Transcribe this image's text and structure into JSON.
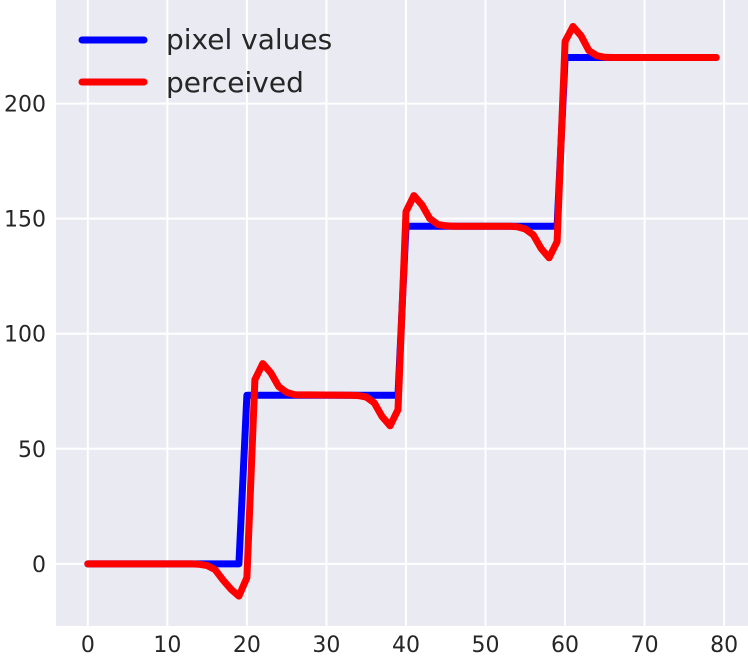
{
  "chart_data": {
    "type": "line",
    "title": "",
    "xlabel": "",
    "ylabel": "",
    "xlim": [
      -4,
      83
    ],
    "ylim": [
      -27,
      245
    ],
    "xticks": [
      0,
      10,
      20,
      30,
      40,
      50,
      60,
      70,
      80
    ],
    "yticks": [
      0,
      50,
      100,
      150,
      200
    ],
    "grid": true,
    "legend_position": "top-left",
    "background": "#eaeaf2",
    "series": [
      {
        "name": "pixel values",
        "color": "#0000ff",
        "x": [
          0,
          19,
          20,
          39,
          40,
          59,
          60,
          79
        ],
        "y": [
          0,
          0,
          73.3,
          73.3,
          146.7,
          146.7,
          220,
          220
        ]
      },
      {
        "name": "perceived",
        "color": "#ff0000",
        "x": [
          0,
          13,
          14,
          15,
          16,
          17,
          18,
          19,
          20,
          21,
          22,
          23,
          24,
          25,
          26,
          33,
          34,
          35,
          36,
          37,
          38,
          39,
          40,
          41,
          42,
          43,
          44,
          45,
          46,
          53,
          54,
          55,
          56,
          57,
          58,
          59,
          60,
          61,
          62,
          63,
          64,
          65,
          66,
          79
        ],
        "y": [
          0,
          0,
          -0.2,
          -0.7,
          -2.5,
          -7,
          -11,
          -14,
          -6,
          80,
          87,
          83,
          77,
          74.5,
          73.5,
          73.3,
          73.1,
          72.5,
          70,
          64,
          60,
          67,
          153,
          160,
          156,
          150,
          147.5,
          146.9,
          146.7,
          146.7,
          146.5,
          145.5,
          143,
          137,
          133,
          140,
          227,
          233.5,
          229.5,
          223,
          220.8,
          220.1,
          220,
          220
        ]
      }
    ]
  }
}
